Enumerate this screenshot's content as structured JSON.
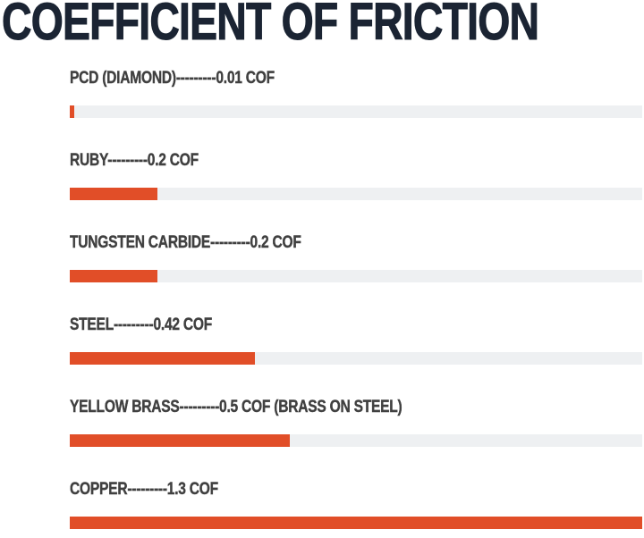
{
  "title": "COEFFICIENT OF FRICTION",
  "colors": {
    "bar": "#e14e28",
    "track": "#eef0f2",
    "title": "#1b2433",
    "label": "#404040",
    "bg": "#ffffff"
  },
  "chart_data": {
    "type": "bar",
    "orientation": "horizontal",
    "title": "COEFFICIENT OF FRICTION",
    "xlabel": "",
    "ylabel": "",
    "max_value": 1.3,
    "grid": false,
    "legend": false,
    "bars": [
      {
        "label": "PCD (DIAMOND)---------0.01 COF",
        "material": "PCD (DIAMOND)",
        "value": 0.01,
        "unit": "COF",
        "note": ""
      },
      {
        "label": "RUBY---------0.2 COF",
        "material": "RUBY",
        "value": 0.2,
        "unit": "COF",
        "note": ""
      },
      {
        "label": "TUNGSTEN CARBIDE---------0.2 COF",
        "material": "TUNGSTEN CARBIDE",
        "value": 0.2,
        "unit": "COF",
        "note": ""
      },
      {
        "label": "STEEL---------0.42 COF",
        "material": "STEEL",
        "value": 0.42,
        "unit": "COF",
        "note": ""
      },
      {
        "label": "YELLOW BRASS---------0.5 COF (BRASS ON STEEL)",
        "material": "YELLOW BRASS",
        "value": 0.5,
        "unit": "COF",
        "note": "BRASS ON STEEL"
      },
      {
        "label": "COPPER---------1.3 COF",
        "material": "COPPER",
        "value": 1.3,
        "unit": "COF",
        "note": ""
      }
    ]
  }
}
